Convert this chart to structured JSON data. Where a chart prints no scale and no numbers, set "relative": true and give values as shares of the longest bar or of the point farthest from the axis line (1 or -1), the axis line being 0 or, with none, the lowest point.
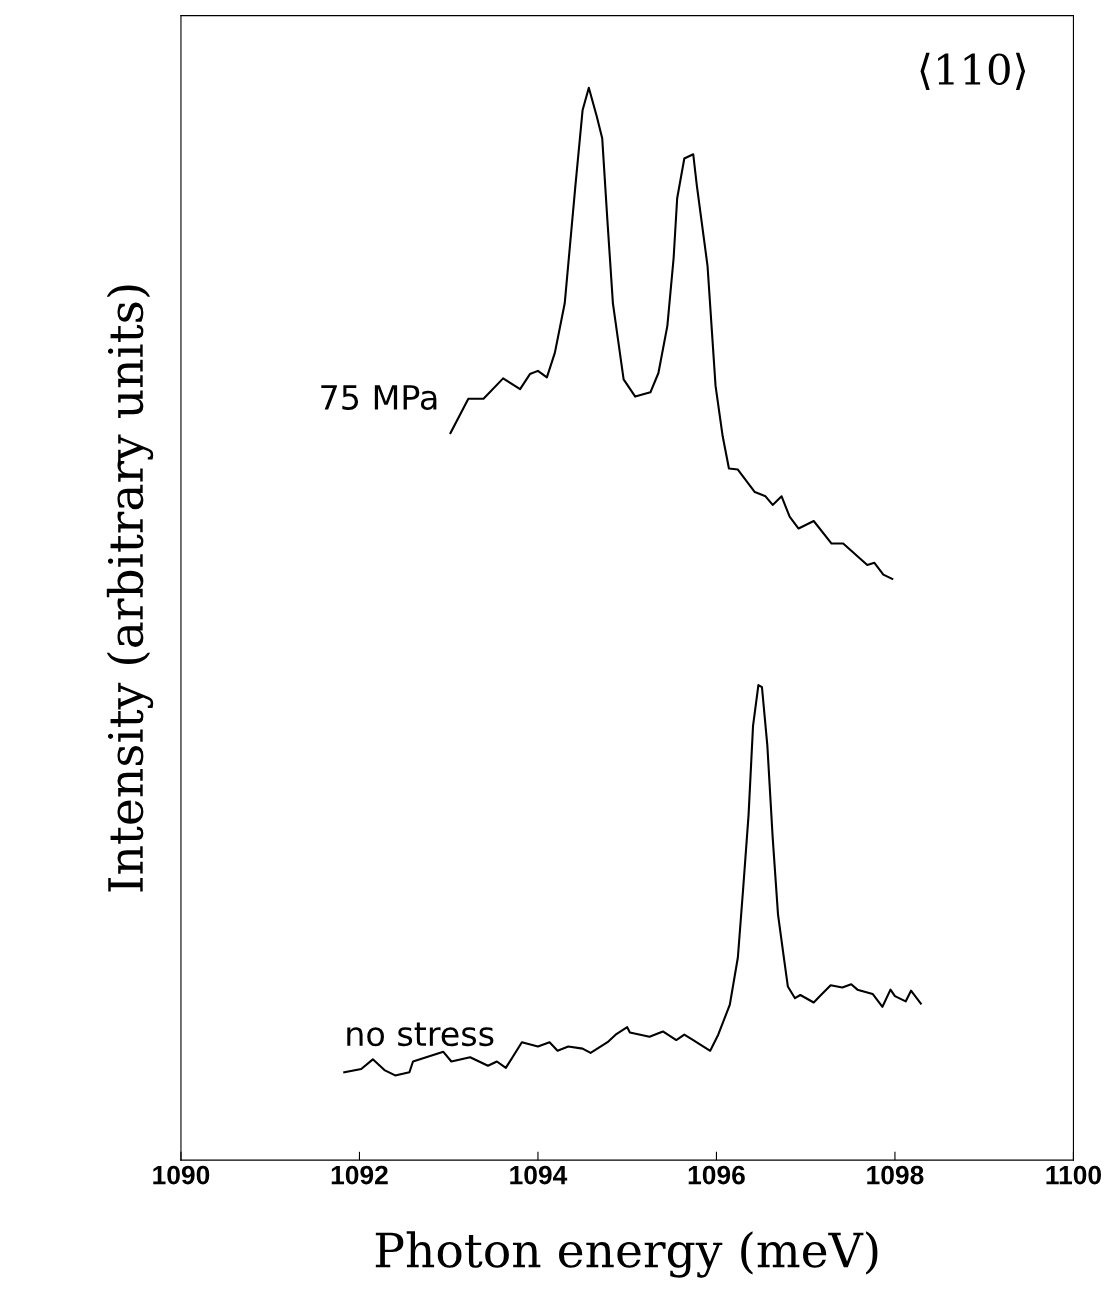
{
  "chart_data": {
    "type": "line",
    "relative": true,
    "xlabel": "Photon energy (meV)",
    "ylabel": "Intensity (arbitrary units)",
    "xlim": [
      1090,
      1100
    ],
    "xticks": [
      1090,
      1092,
      1094,
      1096,
      1098,
      1100
    ],
    "annotations": [
      "⟨110⟩"
    ],
    "grid": false,
    "legend": false,
    "marker": "none",
    "line_style": "solid",
    "series": [
      {
        "name": "75 MPa",
        "color": "#000000",
        "x": [
          1093.02,
          1093.22,
          1093.39,
          1093.61,
          1093.8,
          1093.91,
          1094.0,
          1094.1,
          1094.19,
          1094.3,
          1094.42,
          1094.5,
          1094.57,
          1094.66,
          1094.72,
          1094.78,
          1094.84,
          1094.96,
          1095.09,
          1095.26,
          1095.35,
          1095.45,
          1095.52,
          1095.56,
          1095.64,
          1095.74,
          1095.78,
          1095.9,
          1095.99,
          1096.07,
          1096.14,
          1096.24,
          1096.43,
          1096.55,
          1096.63,
          1096.73,
          1096.82,
          1096.92,
          1097.09,
          1097.29,
          1097.42,
          1097.69,
          1097.77,
          1097.87,
          1097.97
        ],
        "values": [
          0.678,
          0.71,
          0.71,
          0.729,
          0.719,
          0.733,
          0.736,
          0.73,
          0.753,
          0.799,
          0.909,
          0.979,
          1.0,
          0.973,
          0.953,
          0.874,
          0.799,
          0.728,
          0.712,
          0.716,
          0.734,
          0.778,
          0.841,
          0.897,
          0.934,
          0.938,
          0.909,
          0.834,
          0.722,
          0.675,
          0.645,
          0.644,
          0.623,
          0.619,
          0.611,
          0.619,
          0.6,
          0.589,
          0.596,
          0.575,
          0.575,
          0.555,
          0.557,
          0.546,
          0.542
        ]
      },
      {
        "name": "no stress",
        "color": "#000000",
        "x": [
          1091.83,
          1092.02,
          1092.15,
          1092.28,
          1092.4,
          1092.56,
          1092.6,
          1092.94,
          1093.03,
          1093.24,
          1093.44,
          1093.54,
          1093.64,
          1093.82,
          1094.0,
          1094.13,
          1094.22,
          1094.34,
          1094.5,
          1094.59,
          1094.78,
          1094.87,
          1095.0,
          1095.03,
          1095.25,
          1095.4,
          1095.55,
          1095.64,
          1095.74,
          1095.93,
          1096.02,
          1096.15,
          1096.24,
          1096.3,
          1096.36,
          1096.41,
          1096.47,
          1096.51,
          1096.57,
          1096.63,
          1096.69,
          1096.76,
          1096.8,
          1096.88,
          1096.94,
          1097.09,
          1097.16,
          1097.28,
          1097.41,
          1097.51,
          1097.58,
          1097.75,
          1097.86,
          1097.95,
          1098.0,
          1098.12,
          1098.18,
          1098.29
        ],
        "values": [
          0.082,
          0.085,
          0.094,
          0.084,
          0.079,
          0.082,
          0.092,
          0.101,
          0.092,
          0.096,
          0.088,
          0.092,
          0.086,
          0.11,
          0.106,
          0.11,
          0.102,
          0.106,
          0.104,
          0.1,
          0.11,
          0.117,
          0.124,
          0.119,
          0.115,
          0.12,
          0.112,
          0.117,
          0.112,
          0.102,
          0.117,
          0.145,
          0.189,
          0.254,
          0.322,
          0.405,
          0.443,
          0.441,
          0.387,
          0.301,
          0.229,
          0.186,
          0.162,
          0.151,
          0.154,
          0.147,
          0.153,
          0.163,
          0.161,
          0.164,
          0.159,
          0.155,
          0.143,
          0.159,
          0.153,
          0.148,
          0.158,
          0.146
        ]
      }
    ]
  }
}
